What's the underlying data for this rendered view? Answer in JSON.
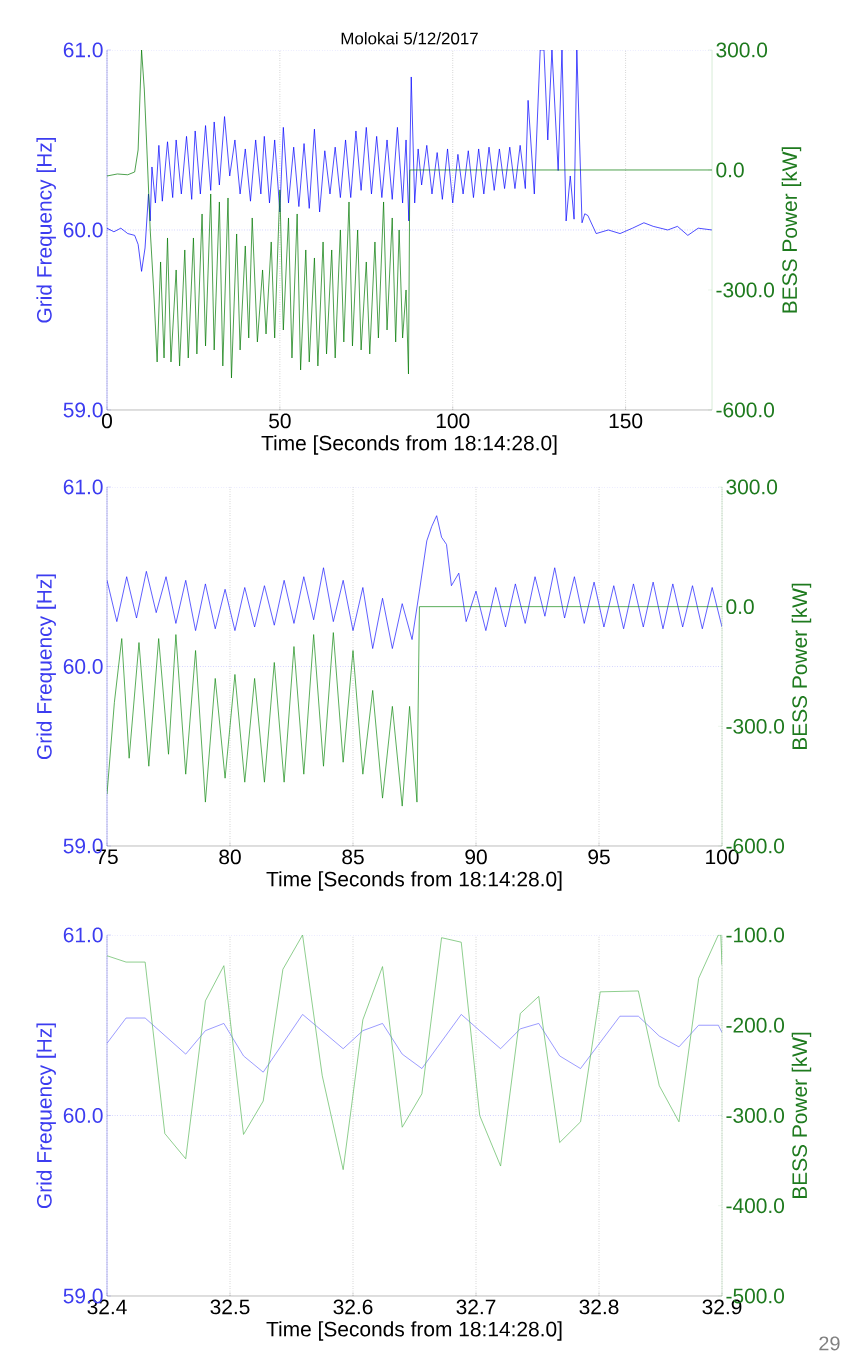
{
  "chart_data": [
    {
      "type": "line",
      "title": "Molokai 5/12/2017",
      "xlabel": "Time [Seconds from 18:14:28.0]",
      "ylabel": "Grid Frequency [Hz]",
      "y2label": "BESS Power [kW]",
      "xlim": [
        0,
        175
      ],
      "xticks": [
        0,
        50,
        100,
        150
      ],
      "ylim": [
        59,
        61
      ],
      "yticks": [
        {
          "value": 59,
          "label": "59.0"
        },
        {
          "value": 60,
          "label": "60.0"
        },
        {
          "value": 61,
          "label": "61.0"
        }
      ],
      "y2lim": [
        -600,
        300
      ],
      "y2ticks": [
        {
          "value": -600,
          "label": "-600.0"
        },
        {
          "value": -300,
          "label": "-300.0"
        },
        {
          "value": 0,
          "label": "0.0"
        },
        {
          "value": 300,
          "label": "300.0"
        }
      ],
      "grid": "x",
      "ref_lines": [
        {
          "axis": "y",
          "value": 60,
          "color": "#8c8cff",
          "line_style": "dotted"
        },
        {
          "axis": "y",
          "value": 61,
          "color": "#8c8cff",
          "line_style": "dotted"
        }
      ],
      "series": [
        {
          "color": "#0000ff",
          "x": [
            0,
            2,
            4,
            6,
            8,
            9,
            10,
            11,
            12,
            12.5,
            13,
            14,
            15,
            16,
            17.5,
            19,
            20,
            21.5,
            23,
            24.5,
            25.5,
            27,
            28.5,
            30,
            31,
            32.5,
            34,
            35.5,
            37,
            38.5,
            40,
            41.5,
            43,
            44.5,
            45.5,
            47,
            48.5,
            50,
            51,
            52.5,
            54,
            55.5,
            57,
            58.5,
            60,
            61.5,
            63,
            64.5,
            66,
            67.5,
            69,
            70.5,
            72,
            73.5,
            75,
            76.5,
            78,
            79.5,
            81,
            82.5,
            84,
            85.5,
            86.5,
            87.3,
            88,
            89,
            90,
            91,
            92.5,
            94,
            95.5,
            97,
            98.5,
            100,
            101.5,
            103,
            104.5,
            106,
            107.5,
            109,
            110.5,
            112,
            113.5,
            115,
            116.5,
            118,
            119.5,
            121,
            121.8,
            123.6,
            125.3,
            126.4,
            127.5,
            128.7,
            130.5,
            131.6,
            132.8,
            134,
            135.1,
            135.9,
            137.4,
            138.2,
            139.1,
            141.5,
            145,
            148.4,
            152,
            155.3,
            158,
            162.2,
            165,
            168,
            171,
            175
          ],
          "values": [
            60.01,
            59.99,
            60.01,
            59.98,
            59.97,
            59.92,
            59.77,
            59.9,
            60.2,
            60.05,
            60.35,
            60.15,
            60.47,
            60.16,
            60.49,
            60.18,
            60.5,
            60.2,
            60.52,
            60.17,
            60.55,
            60.2,
            60.58,
            60.22,
            60.6,
            60.25,
            60.63,
            60.3,
            60.5,
            60.2,
            60.45,
            60.16,
            60.5,
            60.2,
            60.52,
            60.15,
            60.5,
            60.1,
            60.57,
            60.15,
            60.46,
            60.13,
            60.48,
            60.12,
            60.56,
            60.1,
            60.44,
            60.2,
            60.46,
            60.18,
            60.5,
            60.18,
            60.55,
            60.22,
            60.57,
            60.2,
            60.52,
            60.18,
            60.5,
            60.17,
            60.57,
            60.15,
            60.5,
            60.05,
            60.85,
            60.15,
            60.45,
            60.25,
            60.47,
            60.2,
            60.43,
            60.17,
            60.45,
            60.15,
            60.42,
            60.2,
            60.44,
            60.18,
            60.45,
            60.2,
            60.46,
            60.22,
            60.45,
            60.23,
            60.46,
            60.23,
            60.47,
            60.23,
            60.72,
            60.2,
            61.0,
            61.0,
            60.5,
            61.0,
            60.33,
            61.0,
            60.05,
            60.3,
            60.06,
            61.0,
            60.04,
            60.09,
            60.08,
            59.98,
            60.0,
            59.98,
            60.01,
            60.04,
            60.02,
            60.0,
            60.02,
            59.97,
            60.01,
            60.0
          ]
        },
        {
          "color": "#007700",
          "axis": "y2",
          "x": [
            0,
            3,
            6,
            8,
            9,
            10,
            10.8,
            11.5,
            12.5,
            13.5,
            14.5,
            15.5,
            16.5,
            17.5,
            18.5,
            20,
            21,
            22.5,
            23.5,
            25,
            26,
            27.5,
            28.5,
            30,
            31,
            32.5,
            33.5,
            35,
            36,
            37.5,
            38.5,
            40,
            41,
            42,
            43.5,
            45,
            46,
            47.5,
            48.5,
            50,
            51,
            52.5,
            53.5,
            55,
            56,
            57.5,
            58.5,
            60,
            61,
            62.5,
            63.5,
            65,
            66,
            67.5,
            68.5,
            70,
            71,
            72.5,
            73.5,
            75,
            76,
            77.5,
            78.5,
            80,
            81,
            82.5,
            83.5,
            84.5,
            85.5,
            86.5,
            87.2,
            87.6,
            100,
            130,
            175
          ],
          "values": [
            -15,
            -10,
            -12,
            -5,
            50,
            300,
            200,
            60,
            -150,
            -300,
            -480,
            -230,
            -470,
            -170,
            -480,
            -250,
            -490,
            -200,
            -470,
            -170,
            -460,
            -110,
            -440,
            -60,
            -450,
            -80,
            -490,
            -70,
            -520,
            -160,
            -450,
            -190,
            -420,
            -120,
            -430,
            -250,
            -410,
            -180,
            -420,
            -50,
            -400,
            -120,
            -470,
            -110,
            -500,
            -200,
            -480,
            -220,
            -490,
            -180,
            -460,
            -200,
            -470,
            -150,
            -430,
            -80,
            -440,
            -150,
            -450,
            -230,
            -460,
            -180,
            -420,
            -80,
            -400,
            -120,
            -430,
            -150,
            -420,
            -300,
            -510,
            0,
            0,
            0,
            0
          ]
        }
      ]
    },
    {
      "type": "line",
      "xlabel": "Time [Seconds from 18:14:28.0]",
      "ylabel": "Grid Frequency [Hz]",
      "y2label": "BESS Power [kW]",
      "xlim": [
        75,
        100
      ],
      "xticks": [
        75,
        80,
        85,
        90,
        95,
        100
      ],
      "ylim": [
        59,
        61
      ],
      "yticks": [
        {
          "value": 59,
          "label": "59.0"
        },
        {
          "value": 60,
          "label": "60.0"
        },
        {
          "value": 61,
          "label": "61.0"
        }
      ],
      "y2lim": [
        -600,
        300
      ],
      "y2ticks": [
        {
          "value": -600,
          "label": "-600.0"
        },
        {
          "value": -300,
          "label": "-300.0"
        },
        {
          "value": 0,
          "label": "0.0"
        },
        {
          "value": 300,
          "label": "300.0"
        }
      ],
      "grid": "x",
      "ref_lines": [
        {
          "axis": "y",
          "value": 60,
          "color": "#8c8cff",
          "line_style": "dotted"
        },
        {
          "axis": "y",
          "value": 61,
          "color": "#8c8cff",
          "line_style": "dotted"
        }
      ],
      "series": [
        {
          "color": "#1a1aff",
          "x": [
            75,
            75.4,
            75.8,
            76.2,
            76.6,
            77,
            77.4,
            77.8,
            78.2,
            78.6,
            79,
            79.4,
            79.8,
            80.2,
            80.6,
            81,
            81.4,
            81.8,
            82.2,
            82.6,
            83,
            83.4,
            83.8,
            84.2,
            84.6,
            85,
            85.4,
            85.8,
            86.2,
            86.6,
            87,
            87.4,
            87.7,
            88,
            88.2,
            88.4,
            88.6,
            88.8,
            89,
            89.3,
            89.6,
            90,
            90.4,
            90.8,
            91.2,
            91.6,
            92,
            92.4,
            92.8,
            93.2,
            93.6,
            94,
            94.4,
            94.8,
            95.2,
            95.6,
            96,
            96.4,
            96.8,
            97.2,
            97.6,
            98,
            98.4,
            98.8,
            99.2,
            99.6,
            100
          ],
          "values": [
            60.48,
            60.25,
            60.5,
            60.27,
            60.53,
            60.3,
            60.5,
            60.24,
            60.48,
            60.2,
            60.46,
            60.21,
            60.43,
            60.2,
            60.44,
            60.22,
            60.45,
            60.23,
            60.48,
            60.24,
            60.5,
            60.26,
            60.55,
            60.25,
            60.48,
            60.2,
            60.44,
            60.1,
            60.38,
            60.1,
            60.35,
            60.15,
            60.42,
            60.7,
            60.78,
            60.84,
            60.72,
            60.68,
            60.45,
            60.52,
            60.25,
            60.42,
            60.2,
            60.44,
            60.22,
            60.46,
            60.24,
            60.5,
            60.28,
            60.55,
            60.27,
            60.5,
            60.24,
            60.47,
            60.22,
            60.45,
            60.21,
            60.46,
            60.22,
            60.47,
            60.21,
            60.46,
            60.22,
            60.45,
            60.21,
            60.44,
            60.22
          ]
        },
        {
          "color": "#138a13",
          "axis": "y2",
          "x": [
            75,
            75.3,
            75.6,
            75.9,
            76.3,
            76.7,
            77.1,
            77.5,
            77.8,
            78.2,
            78.6,
            79,
            79.4,
            79.8,
            80.2,
            80.6,
            81,
            81.4,
            81.8,
            82.2,
            82.6,
            83,
            83.4,
            83.8,
            84.2,
            84.6,
            85,
            85.4,
            85.8,
            86.2,
            86.6,
            87,
            87.3,
            87.6,
            87.7,
            100
          ],
          "values": [
            -470,
            -240,
            -80,
            -380,
            -90,
            -400,
            -80,
            -370,
            -70,
            -420,
            -110,
            -490,
            -180,
            -430,
            -170,
            -440,
            -180,
            -440,
            -140,
            -440,
            -100,
            -420,
            -70,
            -400,
            -65,
            -390,
            -110,
            -420,
            -210,
            -480,
            -250,
            -500,
            -250,
            -490,
            0,
            0
          ]
        }
      ]
    },
    {
      "type": "line",
      "xlabel": "Time [Seconds from 18:14:28.0]",
      "ylabel": "Grid Frequency [Hz]",
      "y2label": "BESS Power [kW]",
      "xlim": [
        32.4,
        32.9
      ],
      "xticks": [
        32.4,
        32.5,
        32.6,
        32.7,
        32.8,
        32.9
      ],
      "ylim": [
        59,
        61
      ],
      "yticks": [
        {
          "value": 59,
          "label": "59.0"
        },
        {
          "value": 60,
          "label": "60.0"
        },
        {
          "value": 61,
          "label": "61.0"
        }
      ],
      "y2lim": [
        -500,
        -100
      ],
      "y2ticks": [
        {
          "value": -500,
          "label": "-500.0"
        },
        {
          "value": -400,
          "label": "-400.0"
        },
        {
          "value": -300,
          "label": "-300.0"
        },
        {
          "value": -200,
          "label": "-200.0"
        },
        {
          "value": -100,
          "label": "-100.0"
        }
      ],
      "grid": "x",
      "ref_lines": [
        {
          "axis": "y",
          "value": 60,
          "color": "#8c8cff",
          "line_style": "dotted"
        },
        {
          "axis": "y",
          "value": 61,
          "color": "#8c8cff",
          "line_style": "dotted"
        }
      ],
      "annotations": [
        "29"
      ],
      "series": [
        {
          "color": "#7070ff",
          "x": [
            32.4,
            32.4155,
            32.431,
            32.464,
            32.48,
            32.495,
            32.511,
            32.527,
            32.559,
            32.592,
            32.608,
            32.624,
            32.64,
            32.656,
            32.688,
            32.703,
            32.72,
            32.736,
            32.751,
            32.768,
            32.785,
            32.817,
            32.832,
            32.849,
            32.865,
            32.881,
            32.897,
            32.9
          ],
          "values": [
            60.4,
            60.54,
            60.54,
            60.34,
            60.47,
            60.51,
            60.33,
            60.24,
            60.56,
            60.37,
            60.47,
            60.51,
            60.34,
            60.26,
            60.56,
            60.47,
            60.37,
            60.48,
            60.51,
            60.33,
            60.26,
            60.55,
            60.55,
            60.44,
            60.38,
            60.5,
            60.5,
            60.46
          ]
        },
        {
          "color": "#5cb85c",
          "axis": "y2",
          "x": [
            32.4,
            32.4155,
            32.431,
            32.447,
            32.464,
            32.48,
            32.495,
            32.511,
            32.527,
            32.543,
            32.559,
            32.575,
            32.592,
            32.608,
            32.624,
            32.64,
            32.656,
            32.672,
            32.688,
            32.703,
            32.72,
            32.736,
            32.751,
            32.768,
            32.785,
            32.801,
            32.832,
            32.849,
            32.865,
            32.881,
            32.897,
            32.899,
            32.9
          ],
          "values": [
            -123,
            -130,
            -130,
            -320,
            -348,
            -173,
            -134,
            -321,
            -284,
            -138,
            -100,
            -256,
            -360,
            -194,
            -135,
            -313,
            -276,
            -103,
            -108,
            -300,
            -356,
            -187,
            -168,
            -330,
            -307,
            -163,
            -162,
            -267,
            -307,
            -148,
            -100,
            -100,
            -133
          ]
        }
      ]
    }
  ]
}
